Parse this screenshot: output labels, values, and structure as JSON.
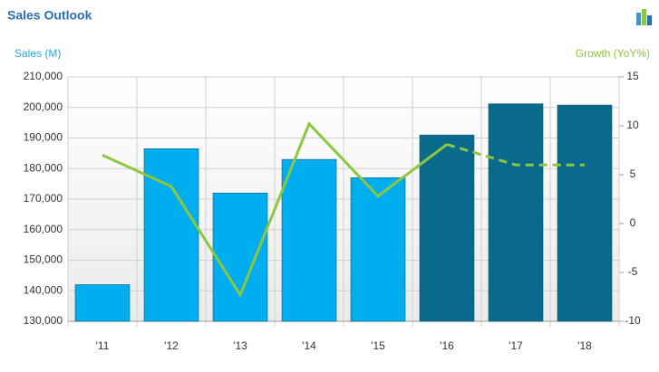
{
  "chart_data": {
    "type": "bar_line",
    "title": "Sales Outlook",
    "y_axis_label": "Sales (M)",
    "y2_axis_label": "Growth (YoY%)",
    "categories": [
      "'11",
      "'12",
      "'13",
      "'14",
      "'15",
      "'16",
      "'17",
      "'18"
    ],
    "series": [
      {
        "type": "bar",
        "colors": [
          "#00aeef",
          "#00aeef",
          "#00aeef",
          "#00aeef",
          "#00aeef",
          "#0a6a8c",
          "#0a6a8c",
          "#0a6a8c"
        ],
        "values": [
          142000,
          186500,
          172000,
          183000,
          177000,
          191000,
          201200,
          200800
        ]
      },
      {
        "type": "line",
        "axis": "y2",
        "color": "#8dc63f",
        "dash_from": 5,
        "values": [
          7,
          3.8,
          -7.3,
          10.2,
          2.8,
          8.1,
          6,
          6
        ]
      }
    ],
    "ylim": [
      130000,
      210000
    ],
    "yticks": [
      {
        "value": 130000,
        "label": "130,000"
      },
      {
        "value": 140000,
        "label": "140,000"
      },
      {
        "value": 150000,
        "label": "150,000"
      },
      {
        "value": 160000,
        "label": "160,000"
      },
      {
        "value": 170000,
        "label": "170,000"
      },
      {
        "value": 180000,
        "label": "180,000"
      },
      {
        "value": 190000,
        "label": "190,000"
      },
      {
        "value": 200000,
        "label": "200,000"
      },
      {
        "value": 210000,
        "label": "210,000"
      }
    ],
    "y2lim": [
      -10,
      15
    ],
    "y2ticks": [
      -10,
      -5,
      0,
      5,
      10,
      15
    ],
    "grid": true
  }
}
